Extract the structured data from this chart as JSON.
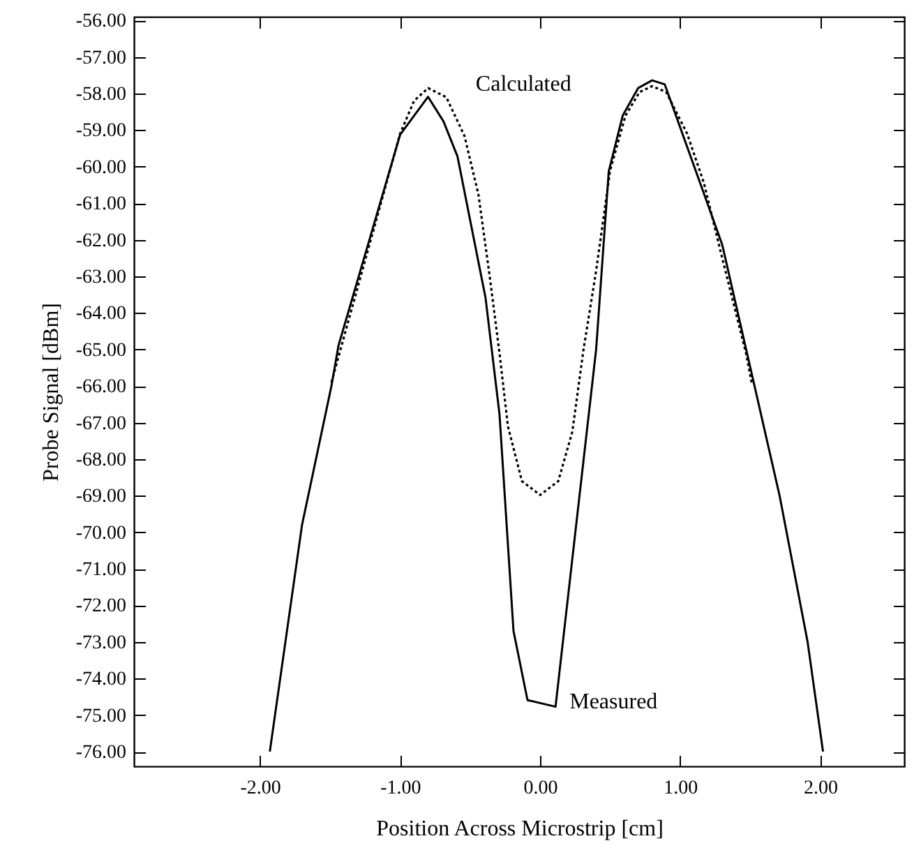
{
  "chart_data": {
    "type": "line",
    "xlabel": "Position Across Microstrip [cm]",
    "ylabel": "Probe Signal [dBm]",
    "xlim": [
      -2.9,
      2.6
    ],
    "ylim": [
      -76.4,
      -55.9
    ],
    "xticks": [
      {
        "value": -2,
        "label": "-2.00"
      },
      {
        "value": -1,
        "label": "-1.00"
      },
      {
        "value": 0,
        "label": "0.00"
      },
      {
        "value": 1,
        "label": "1.00"
      },
      {
        "value": 2,
        "label": "2.00"
      }
    ],
    "yticks": [
      {
        "value": -56,
        "label": "-56.00"
      },
      {
        "value": -57,
        "label": "-57.00"
      },
      {
        "value": -58,
        "label": "-58.00"
      },
      {
        "value": -59,
        "label": "-59.00"
      },
      {
        "value": -60,
        "label": "-60.00"
      },
      {
        "value": -61,
        "label": "-61.00"
      },
      {
        "value": -62,
        "label": "-62.00"
      },
      {
        "value": -63,
        "label": "-63.00"
      },
      {
        "value": -64,
        "label": "-64.00"
      },
      {
        "value": -65,
        "label": "-65.00"
      },
      {
        "value": -66,
        "label": "-66.00"
      },
      {
        "value": -67,
        "label": "-67.00"
      },
      {
        "value": -68,
        "label": "-68.00"
      },
      {
        "value": -69,
        "label": "-69.00"
      },
      {
        "value": -70,
        "label": "-70.00"
      },
      {
        "value": -71,
        "label": "-71.00"
      },
      {
        "value": -72,
        "label": "-72.00"
      },
      {
        "value": -73,
        "label": "-73.00"
      },
      {
        "value": -74,
        "label": "-74.00"
      },
      {
        "value": -75,
        "label": "-75.00"
      },
      {
        "value": -76,
        "label": "-76.00"
      }
    ],
    "grid": false,
    "series": [
      {
        "name": "Measured",
        "color": "#000000",
        "line_style": "solid",
        "x": [
          -1.93,
          -1.7,
          -1.49,
          -1.44,
          -1.0,
          -0.8,
          -0.69,
          -0.59,
          -0.39,
          -0.29,
          -0.19,
          -0.09,
          0.11,
          0.4,
          0.49,
          0.59,
          0.7,
          0.8,
          0.89,
          1.3,
          1.71,
          1.91,
          2.02
        ],
        "values": [
          -76.0,
          -69.8,
          -66.0,
          -64.9,
          -59.13,
          -58.09,
          -58.76,
          -59.72,
          -63.58,
          -66.77,
          -72.7,
          -74.59,
          -74.77,
          -65.0,
          -60.13,
          -58.6,
          -57.85,
          -57.64,
          -57.75,
          -62.13,
          -69.0,
          -73.0,
          -76.0
        ]
      },
      {
        "name": "Calculated",
        "color": "#000000",
        "line_style": "dotted",
        "x": [
          -1.49,
          -1.0,
          -0.9,
          -0.8,
          -0.67,
          -0.54,
          -0.44,
          -0.36,
          -0.29,
          -0.23,
          -0.13,
          0.0,
          0.13,
          0.23,
          0.31,
          0.4,
          0.5,
          0.61,
          0.71,
          0.8,
          0.9,
          1.05,
          1.17,
          1.3,
          1.47,
          1.51
        ],
        "values": [
          -65.9,
          -59.1,
          -58.2,
          -57.85,
          -58.1,
          -59.16,
          -60.77,
          -63.0,
          -65.1,
          -67.1,
          -68.6,
          -68.98,
          -68.6,
          -67.25,
          -65.0,
          -62.85,
          -60.1,
          -58.6,
          -57.96,
          -57.8,
          -57.96,
          -59.1,
          -60.45,
          -62.5,
          -65.1,
          -65.9
        ]
      }
    ]
  }
}
